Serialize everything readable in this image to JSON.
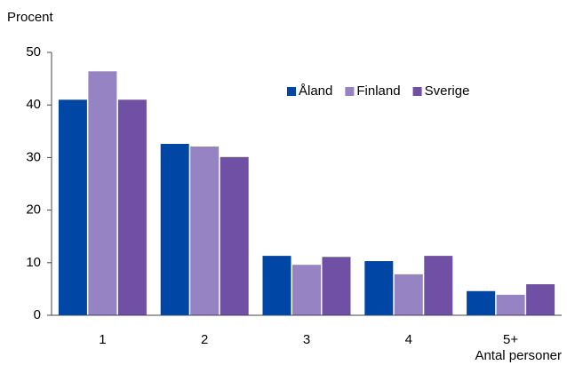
{
  "chart_data": {
    "type": "bar",
    "y_label": "Procent",
    "x_label": "Antal personer",
    "categories": [
      "1",
      "2",
      "3",
      "4",
      "5+"
    ],
    "series": [
      {
        "name": "Åland",
        "color": "#0046a5",
        "values": [
          41.0,
          32.6,
          11.3,
          10.3,
          4.6
        ]
      },
      {
        "name": "Finland",
        "color": "#9683c4",
        "values": [
          46.4,
          32.1,
          9.6,
          7.8,
          3.9
        ]
      },
      {
        "name": "Sverige",
        "color": "#7050a4",
        "values": [
          41.0,
          30.1,
          11.1,
          11.3,
          5.9
        ]
      }
    ],
    "ylim": [
      0,
      50
    ],
    "yticks": [
      0,
      10,
      20,
      30,
      40,
      50
    ],
    "grid": false,
    "legend": "top-right"
  }
}
